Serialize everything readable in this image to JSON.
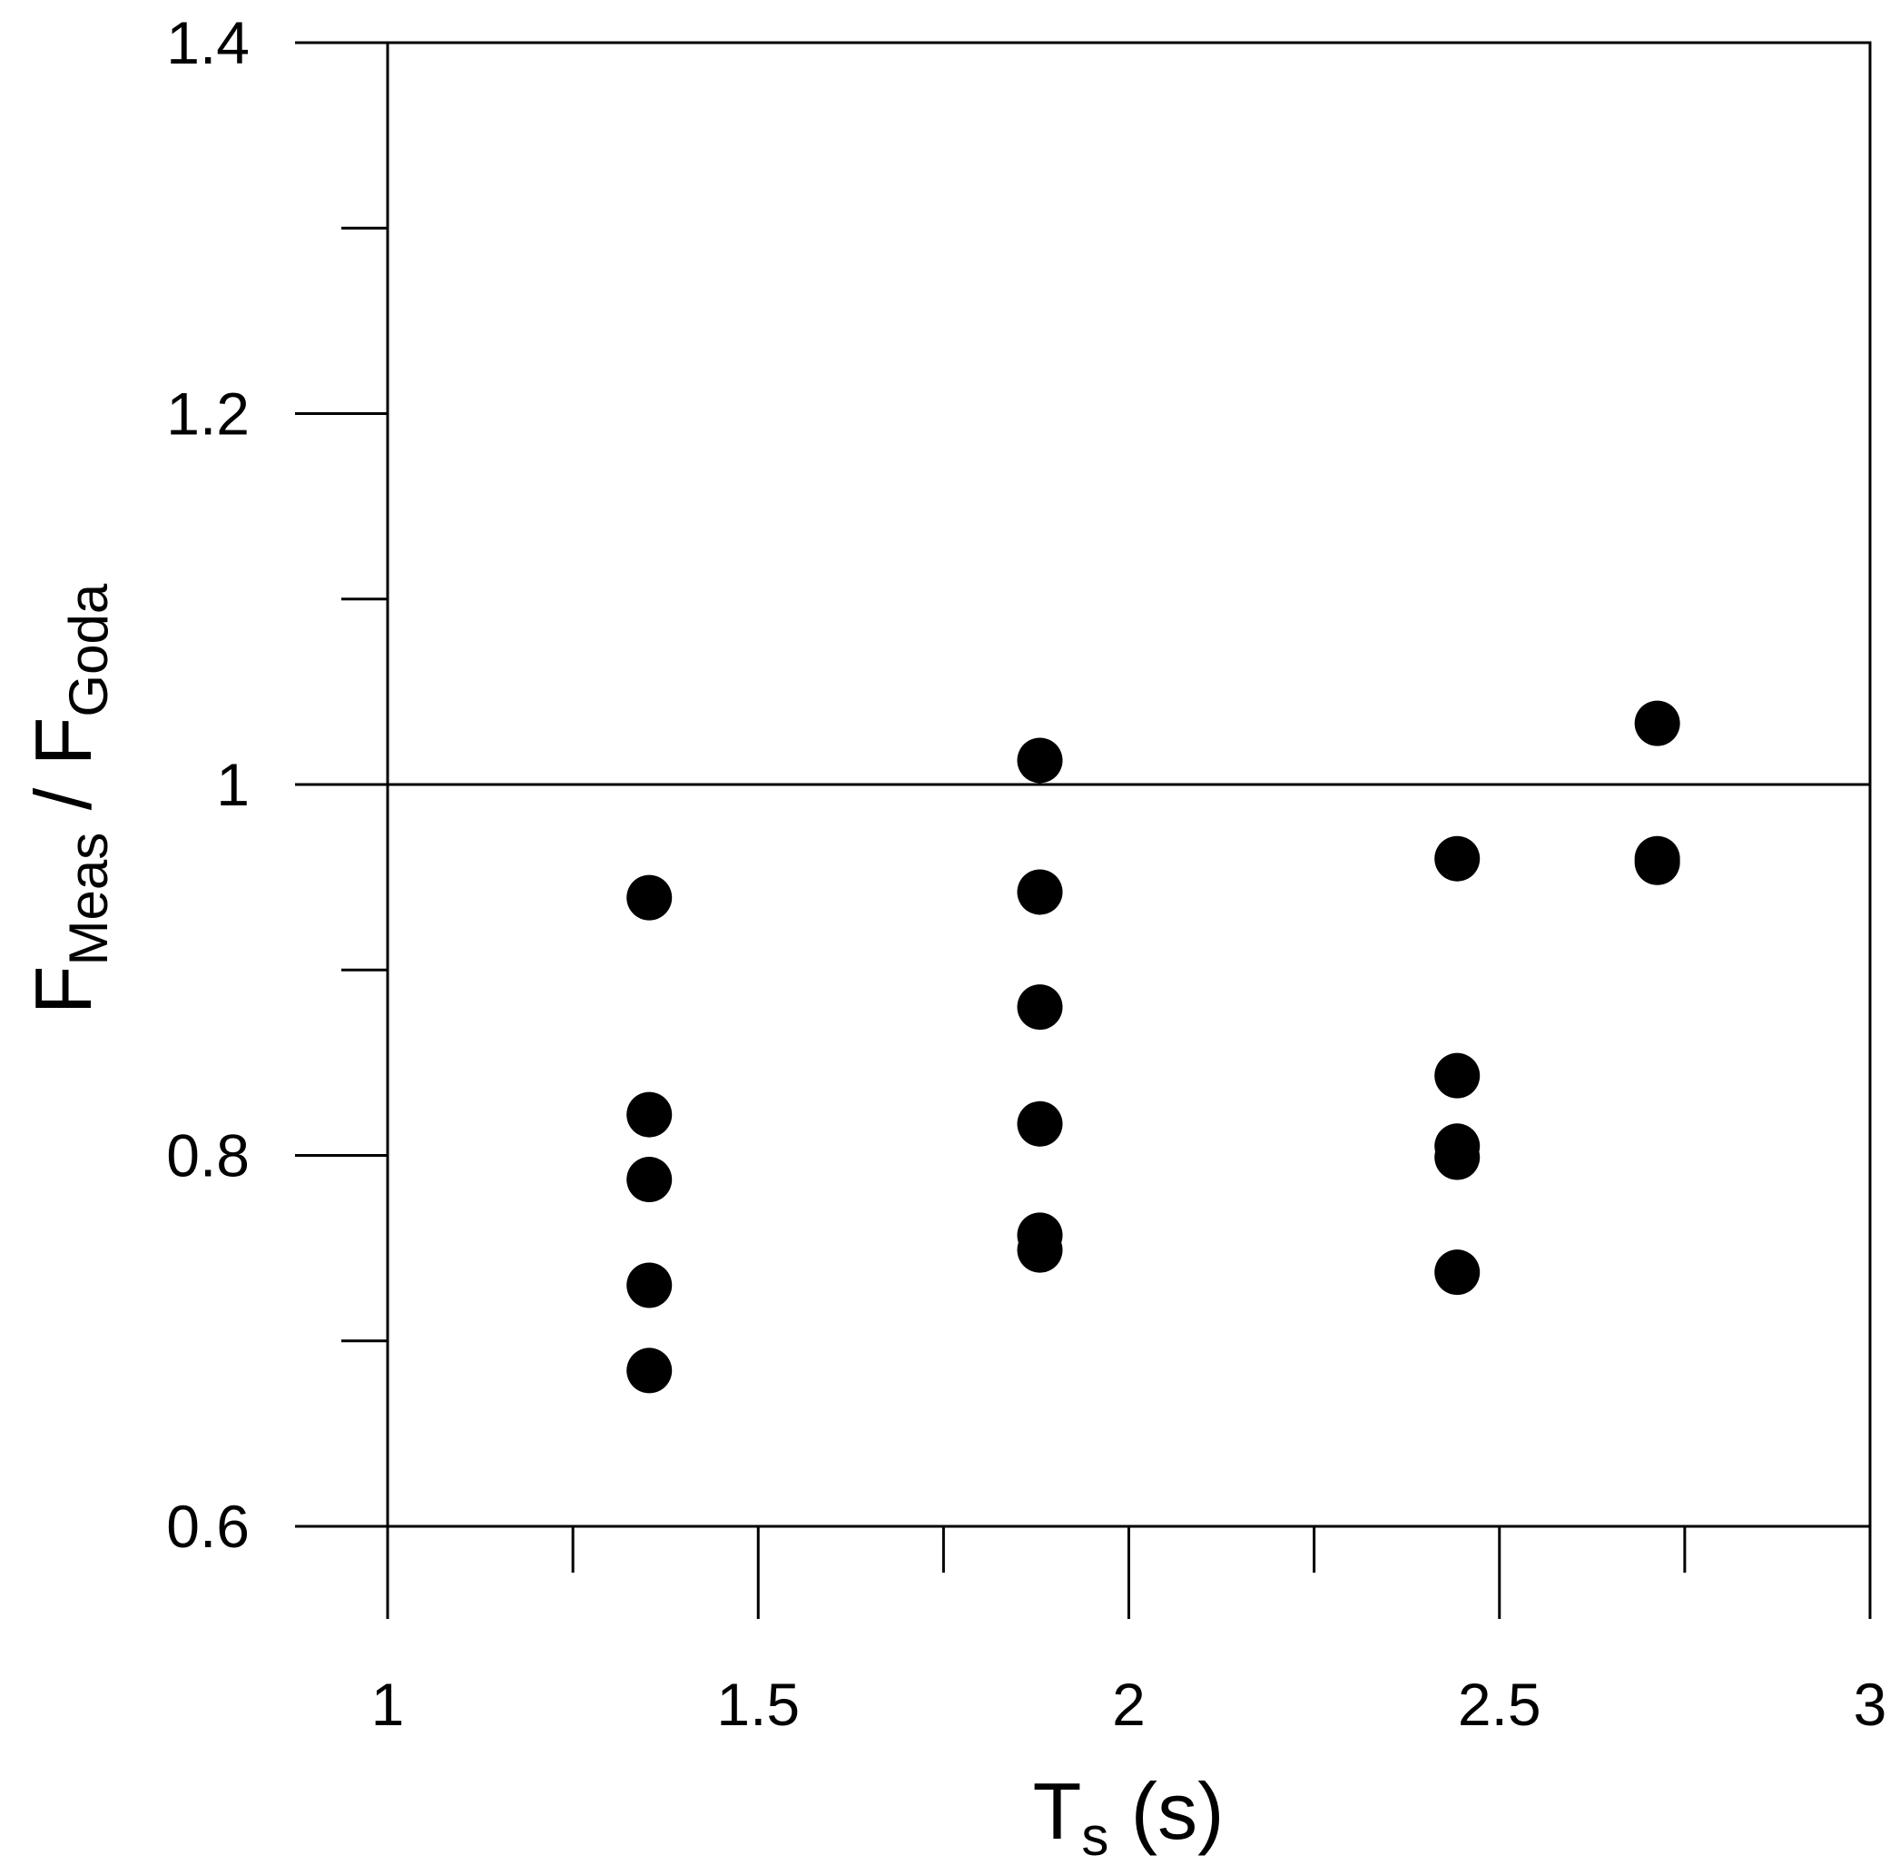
{
  "chart_data": {
    "type": "scatter",
    "xlabel": {
      "main": "T",
      "sub": "s",
      "unit": " (s)"
    },
    "ylabel": {
      "main1": "F",
      "sub1": "Meas",
      "sep": " / ",
      "main2": "F",
      "sub2": "Goda"
    },
    "xlim": [
      1,
      3
    ],
    "ylim": [
      0.6,
      1.4
    ],
    "xticks": [
      1,
      1.5,
      2,
      2.5,
      3
    ],
    "xtick_labels": [
      "1",
      "1.5",
      "2",
      "2.5",
      "3"
    ],
    "xminor_ticks": [
      1.25,
      1.75,
      2.25,
      2.75
    ],
    "yticks": [
      0.6,
      0.8,
      1.0,
      1.2,
      1.4
    ],
    "ytick_labels": [
      "0.6",
      "0.8",
      "1",
      "1.2",
      "1.4"
    ],
    "yminor_ticks": [
      0.7,
      0.9,
      1.1,
      1.3
    ],
    "reference_line": {
      "y": 1.0
    },
    "grid": false,
    "marker_color": "#000000",
    "series": [
      {
        "points": [
          {
            "x": 1.353,
            "y": 0.939
          },
          {
            "x": 1.353,
            "y": 0.822
          },
          {
            "x": 1.353,
            "y": 0.787
          },
          {
            "x": 1.353,
            "y": 0.73
          },
          {
            "x": 1.353,
            "y": 0.684
          },
          {
            "x": 1.88,
            "y": 1.013
          },
          {
            "x": 1.88,
            "y": 0.942
          },
          {
            "x": 1.88,
            "y": 0.88
          },
          {
            "x": 1.88,
            "y": 0.817
          },
          {
            "x": 1.88,
            "y": 0.757
          },
          {
            "x": 1.88,
            "y": 0.749
          },
          {
            "x": 2.443,
            "y": 0.96
          },
          {
            "x": 2.443,
            "y": 0.843
          },
          {
            "x": 2.443,
            "y": 0.805
          },
          {
            "x": 2.443,
            "y": 0.799
          },
          {
            "x": 2.443,
            "y": 0.737
          },
          {
            "x": 2.713,
            "y": 1.033
          },
          {
            "x": 2.713,
            "y": 0.96
          },
          {
            "x": 2.713,
            "y": 0.958
          }
        ]
      }
    ]
  }
}
